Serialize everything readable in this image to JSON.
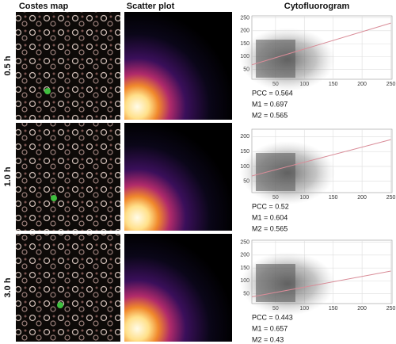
{
  "headers": [
    "Costes map",
    "Scatter plot",
    "Cytofluorogram"
  ],
  "row_labels": [
    "0.5 h",
    "1.0 h",
    "3.0 h"
  ],
  "stats": [
    [
      "PCC = 0.564",
      "M1 = 0.697",
      "M2 = 0.565"
    ],
    [
      "PCC = 0.52",
      "M1 = 0.604",
      "M2 = 0.565"
    ],
    [
      "PCC = 0.443",
      "M1 = 0.657",
      "M2 = 0.43"
    ]
  ],
  "chart_data": [
    {
      "type": "scatter",
      "xlim": [
        9,
        252
      ],
      "ylim": [
        12,
        258
      ],
      "xticks": [
        50,
        100,
        150,
        200,
        250
      ],
      "yticks": [
        50,
        100,
        150,
        200,
        250
      ],
      "grid": true,
      "series": [
        {
          "color": "#d98c98",
          "x": [
            9,
            250
          ],
          "values": [
            68,
            230
          ]
        }
      ]
    },
    {
      "type": "scatter",
      "xlim": [
        9,
        252
      ],
      "ylim": [
        12,
        225
      ],
      "xticks": [
        50,
        100,
        150,
        200,
        250
      ],
      "yticks": [
        50,
        100,
        150,
        200
      ],
      "grid": true,
      "series": [
        {
          "color": "#d98c98",
          "x": [
            9,
            250
          ],
          "values": [
            68,
            190
          ]
        }
      ]
    },
    {
      "type": "scatter",
      "xlim": [
        9,
        252
      ],
      "ylim": [
        12,
        258
      ],
      "xticks": [
        50,
        100,
        150,
        200,
        250
      ],
      "yticks": [
        50,
        100,
        150,
        200,
        250
      ],
      "grid": true,
      "series": [
        {
          "color": "#d98c98",
          "x": [
            9,
            250
          ],
          "values": [
            38,
            138
          ]
        }
      ]
    }
  ]
}
